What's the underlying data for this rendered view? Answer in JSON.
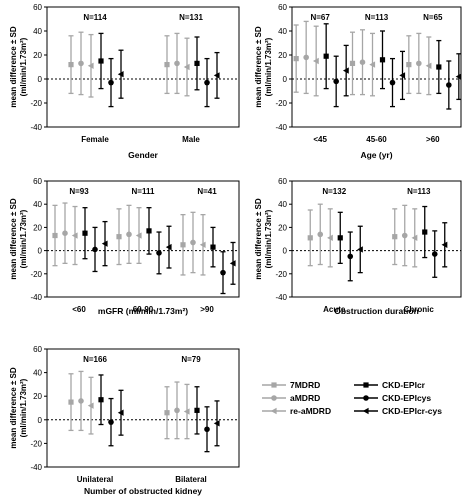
{
  "chart_data": [
    {
      "type": "scatter",
      "xlabel": "Gender",
      "ylabel": "mean difference ± SD (ml/min/1.73m²)",
      "ylim": [
        -40,
        60
      ],
      "yticks": [
        -40,
        -20,
        0,
        20,
        40,
        60
      ],
      "categories": [
        "Female",
        "Male"
      ],
      "n_labels": [
        "N=114",
        "N=131"
      ],
      "series": [
        {
          "name": "7MDRD",
          "values": [
            12,
            12
          ],
          "sd": [
            24,
            24
          ]
        },
        {
          "name": "aMDRD",
          "values": [
            13,
            13
          ],
          "sd": [
            26,
            25
          ]
        },
        {
          "name": "re-aMDRD",
          "values": [
            11,
            10
          ],
          "sd": [
            26,
            24
          ]
        },
        {
          "name": "CKD-EPIcr",
          "values": [
            15,
            13
          ],
          "sd": [
            23,
            22
          ]
        },
        {
          "name": "CKD-EPIcys",
          "values": [
            -3,
            -3
          ],
          "sd": [
            20,
            20
          ]
        },
        {
          "name": "CKD-EPIcr-cys",
          "values": [
            4,
            3
          ],
          "sd": [
            20,
            19
          ]
        }
      ]
    },
    {
      "type": "scatter",
      "xlabel": "Age (yr)",
      "ylabel": "mean difference ± SD (ml/min/1.73m²)",
      "ylim": [
        -40,
        60
      ],
      "yticks": [
        -40,
        -20,
        0,
        20,
        40,
        60
      ],
      "categories": [
        "<45",
        "45-60",
        ">60"
      ],
      "n_labels": [
        "N=67",
        "N=113",
        "N=65"
      ],
      "series": [
        {
          "name": "7MDRD",
          "values": [
            17,
            13,
            12
          ],
          "sd": [
            28,
            26,
            24
          ]
        },
        {
          "name": "aMDRD",
          "values": [
            18,
            14,
            13
          ],
          "sd": [
            30,
            27,
            25
          ]
        },
        {
          "name": "re-aMDRD",
          "values": [
            15,
            12,
            11
          ],
          "sd": [
            29,
            26,
            24
          ]
        },
        {
          "name": "CKD-EPIcr",
          "values": [
            19,
            16,
            10
          ],
          "sd": [
            27,
            24,
            22
          ]
        },
        {
          "name": "CKD-EPIcys",
          "values": [
            -2,
            -3,
            -5
          ],
          "sd": [
            21,
            20,
            20
          ]
        },
        {
          "name": "CKD-EPIcr-cys",
          "values": [
            7,
            3,
            2
          ],
          "sd": [
            21,
            20,
            19
          ]
        }
      ]
    },
    {
      "type": "scatter",
      "xlabel": "mGFR (ml/min/1.73m²)",
      "ylabel": "mean difference ± SD (ml/min/1.73m²)",
      "ylim": [
        -40,
        60
      ],
      "yticks": [
        -40,
        -20,
        0,
        20,
        40,
        60
      ],
      "categories": [
        "<60",
        "60-90",
        ">90"
      ],
      "n_labels": [
        "N=93",
        "N=111",
        "N=41"
      ],
      "series": [
        {
          "name": "7MDRD",
          "values": [
            13,
            12,
            5
          ],
          "sd": [
            26,
            24,
            26
          ]
        },
        {
          "name": "aMDRD",
          "values": [
            15,
            14,
            7
          ],
          "sd": [
            26,
            25,
            26
          ]
        },
        {
          "name": "re-aMDRD",
          "values": [
            13,
            13,
            5
          ],
          "sd": [
            25,
            24,
            26
          ]
        },
        {
          "name": "CKD-EPIcr",
          "values": [
            15,
            17,
            3
          ],
          "sd": [
            22,
            20,
            17
          ]
        },
        {
          "name": "CKD-EPIcys",
          "values": [
            1,
            -2,
            -19
          ],
          "sd": [
            19,
            18,
            18
          ]
        },
        {
          "name": "CKD-EPIcr-cys",
          "values": [
            6,
            3,
            -11
          ],
          "sd": [
            19,
            18,
            18
          ]
        }
      ]
    },
    {
      "type": "scatter",
      "xlabel": "Obstruction duration",
      "ylabel": "mean difference ± SD (ml/min/1.73m²)",
      "ylim": [
        -40,
        60
      ],
      "yticks": [
        -40,
        -20,
        0,
        20,
        40,
        60
      ],
      "categories": [
        "Acute",
        "Chronic"
      ],
      "n_labels": [
        "N=132",
        "N=113"
      ],
      "series": [
        {
          "name": "7MDRD",
          "values": [
            11,
            12
          ],
          "sd": [
            24,
            24
          ]
        },
        {
          "name": "aMDRD",
          "values": [
            14,
            13
          ],
          "sd": [
            26,
            26
          ]
        },
        {
          "name": "re-aMDRD",
          "values": [
            11,
            11
          ],
          "sd": [
            25,
            25
          ]
        },
        {
          "name": "CKD-EPIcr",
          "values": [
            11,
            16
          ],
          "sd": [
            22,
            22
          ]
        },
        {
          "name": "CKD-EPIcys",
          "values": [
            -5,
            -3
          ],
          "sd": [
            21,
            20
          ]
        },
        {
          "name": "CKD-EPIcr-cys",
          "values": [
            1,
            5
          ],
          "sd": [
            20,
            19
          ]
        }
      ]
    },
    {
      "type": "scatter",
      "xlabel": "Number of obstructed kidney",
      "ylabel": "mean difference ± SD (ml/min/1.73m²)",
      "ylim": [
        -40,
        60
      ],
      "yticks": [
        -40,
        -20,
        0,
        20,
        40,
        60
      ],
      "categories": [
        "Unilateral",
        "Bilateral"
      ],
      "n_labels": [
        "N=166",
        "N=79"
      ],
      "series": [
        {
          "name": "7MDRD",
          "values": [
            15,
            6
          ],
          "sd": [
            24,
            22
          ]
        },
        {
          "name": "aMDRD",
          "values": [
            16,
            8
          ],
          "sd": [
            25,
            24
          ]
        },
        {
          "name": "re-aMDRD",
          "values": [
            12,
            7
          ],
          "sd": [
            24,
            23
          ]
        },
        {
          "name": "CKD-EPIcr",
          "values": [
            17,
            8
          ],
          "sd": [
            21,
            20
          ]
        },
        {
          "name": "CKD-EPIcys",
          "values": [
            -2,
            -8
          ],
          "sd": [
            20,
            19
          ]
        },
        {
          "name": "CKD-EPIcr-cys",
          "values": [
            6,
            -3
          ],
          "sd": [
            19,
            19
          ]
        }
      ]
    }
  ],
  "legend": {
    "placement": "bottom-right",
    "items": [
      {
        "name": "7MDRD",
        "marker": "square",
        "color": "#a6a6a6"
      },
      {
        "name": "aMDRD",
        "marker": "circle",
        "color": "#a6a6a6"
      },
      {
        "name": "re-aMDRD",
        "marker": "triangle-left",
        "color": "#a6a6a6"
      },
      {
        "name": "CKD-EPIcr",
        "marker": "square",
        "color": "#000000"
      },
      {
        "name": "CKD-EPIcys",
        "marker": "circle",
        "color": "#000000"
      },
      {
        "name": "CKD-EPIcr-cys",
        "marker": "triangle-left",
        "color": "#000000"
      }
    ]
  },
  "colors": {
    "gray": "#a6a6a6",
    "black": "#000000"
  }
}
